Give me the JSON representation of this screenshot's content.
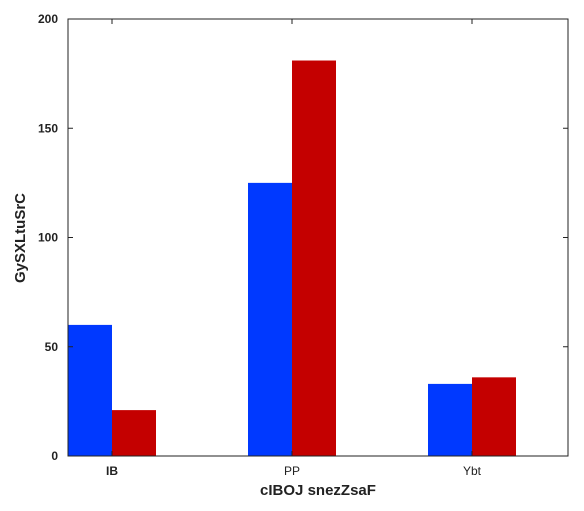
{
  "chart_data": {
    "type": "bar",
    "title": "",
    "xlabel": "cIBOJ snezZsaF",
    "ylabel": "GySXLtuSrC",
    "categories": [
      "IB",
      "PP",
      "Ybt"
    ],
    "series": [
      {
        "values": [
          60,
          125,
          33
        ],
        "color": "#0039ff"
      },
      {
        "values": [
          21,
          181,
          36
        ],
        "color": "#c40000"
      }
    ],
    "ylim": [
      0,
      200
    ],
    "yticks": [
      0,
      50,
      100,
      150,
      200
    ],
    "grid": false,
    "legend": "none"
  }
}
